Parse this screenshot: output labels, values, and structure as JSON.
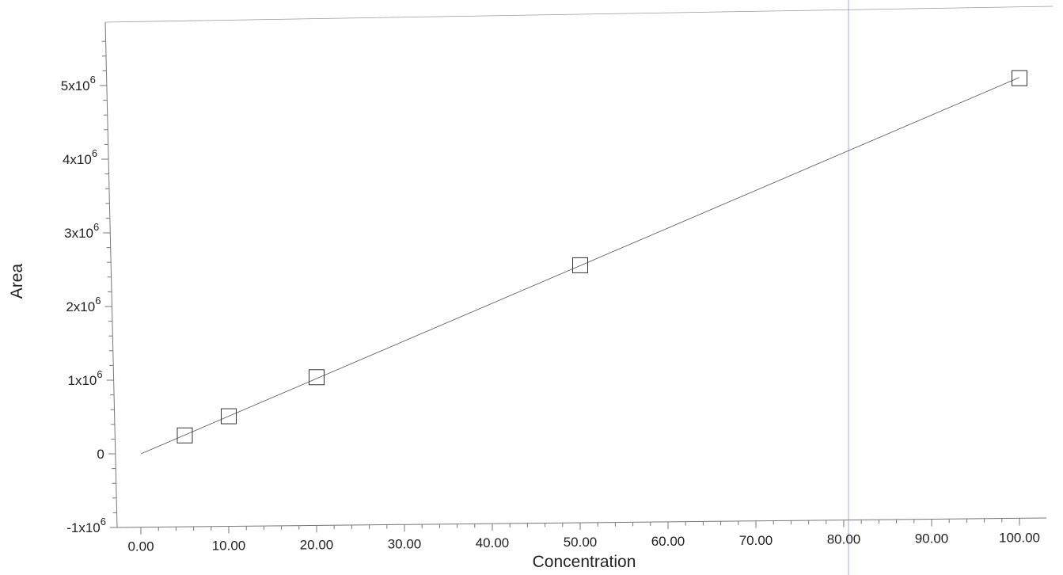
{
  "chart_data": {
    "type": "scatter",
    "title": "",
    "xlabel": "Concentration",
    "ylabel": "Area",
    "xlim": [
      -2,
      100
    ],
    "ylim": [
      -1000000,
      5800000
    ],
    "grid": false,
    "legend": "none",
    "x_ticks": [
      0,
      10,
      20,
      30,
      40,
      50,
      60,
      70,
      80,
      90,
      100
    ],
    "x_tick_labels": [
      "0.00",
      "10.00",
      "20.00",
      "30.00",
      "40.00",
      "50.00",
      "60.00",
      "70.00",
      "80.00",
      "90.00",
      "100.00"
    ],
    "y_ticks": [
      -1000000,
      0,
      1000000,
      2000000,
      3000000,
      4000000,
      5000000
    ],
    "y_tick_labels": [
      {
        "base": "-1x10",
        "exp": "6"
      },
      {
        "base": "0",
        "exp": ""
      },
      {
        "base": "1x10",
        "exp": "6"
      },
      {
        "base": "2x10",
        "exp": "6"
      },
      {
        "base": "3x10",
        "exp": "6"
      },
      {
        "base": "4x10",
        "exp": "6"
      },
      {
        "base": "5x10",
        "exp": "6"
      }
    ],
    "series": [
      {
        "marker": "open-square",
        "x": [
          5,
          10,
          20,
          50,
          100
        ],
        "y": [
          250000,
          510000,
          1040000,
          2560000,
          5100000
        ]
      }
    ],
    "fit_line": {
      "x": [
        0,
        100
      ],
      "y": [
        0,
        5110000
      ]
    },
    "colors": {
      "axis": "#777777",
      "marker": "#333333",
      "line": "#555555",
      "cursor": "#b8c0e8"
    }
  }
}
